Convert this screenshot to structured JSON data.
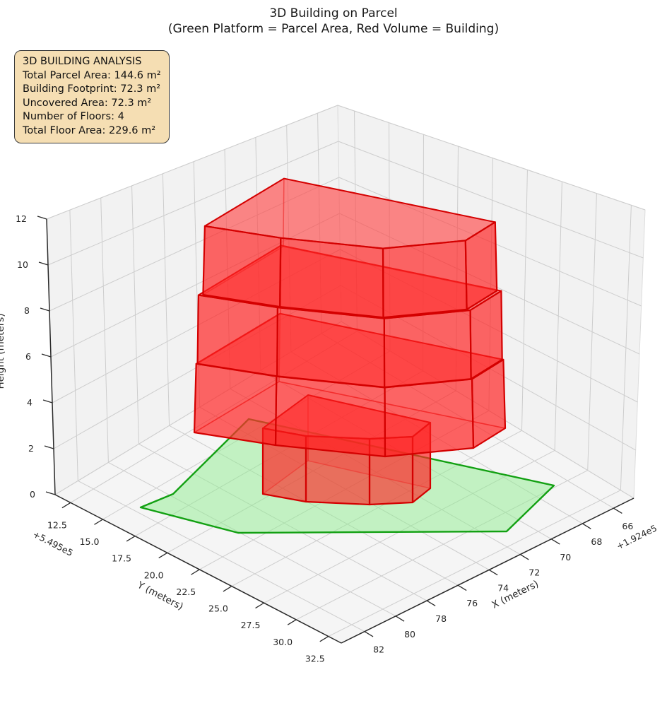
{
  "title": "3D Building on Parcel",
  "subtitle": "(Green Platform = Parcel Area, Red Volume = Building)",
  "info_box": {
    "heading": "3D BUILDING ANALYSIS",
    "lines": [
      "Total Parcel Area: 144.6 m²",
      "Building Footprint: 72.3 m²",
      "Uncovered Area: 72.3 m²",
      "Number of Floors: 4",
      "Total Floor Area: 229.6 m²"
    ]
  },
  "axes": {
    "x": {
      "label": "X (meters)",
      "offset_label": "+1.924e5",
      "ticks": [
        "82",
        "80",
        "78",
        "76",
        "74",
        "72",
        "70",
        "68",
        "66"
      ]
    },
    "y": {
      "label": "Y (meters)",
      "offset_label": "+5.495e5",
      "ticks": [
        "12.5",
        "15.0",
        "17.5",
        "20.0",
        "22.5",
        "25.0",
        "27.5",
        "30.0",
        "32.5"
      ]
    },
    "z": {
      "label": "Height (meters)",
      "ticks": [
        "0",
        "2",
        "4",
        "6",
        "8",
        "10",
        "12"
      ]
    }
  },
  "colors": {
    "parcel_fill": "#90ee90",
    "parcel_edge": "#12a012",
    "building_edge": "#d40000",
    "building_fill": "#ff1e1e",
    "info_box_bg": "#f5deb3",
    "pane": "#f2f2f2",
    "grid": "#cdcdcd"
  },
  "chart_data": {
    "type": "3d-building-parcel-plot",
    "title": "3D Building on Parcel",
    "subtitle": "(Green Platform = Parcel Area, Red Volume = Building)",
    "x_axis": {
      "label": "X (meters)",
      "tick_values": [
        66,
        68,
        70,
        72,
        74,
        76,
        78,
        80,
        82
      ],
      "offset": "+1.924e5",
      "range_est": [
        64.7,
        83.5
      ]
    },
    "y_axis": {
      "label": "Y (meters)",
      "tick_values": [
        12.5,
        15.0,
        17.5,
        20.0,
        22.5,
        25.0,
        27.5,
        30.0,
        32.5
      ],
      "offset": "+5.495e5",
      "range_est": [
        11.3,
        33.5
      ]
    },
    "z_axis": {
      "label": "Height (meters)",
      "tick_values": [
        0,
        2,
        4,
        6,
        8,
        10,
        12
      ],
      "range": [
        0,
        12
      ]
    },
    "parcel": {
      "shape": "polygon",
      "color": "green (translucent)",
      "total_area_m2": 144.6,
      "z_level": 0
    },
    "building": {
      "color": "red (translucent)",
      "footprint_m2": 72.3,
      "uncovered_area_m2": 72.3,
      "number_of_floors": 4,
      "total_floor_area_m2": 229.6,
      "floor_height_m": 3,
      "total_height_m": 12,
      "notes": "ground floor box is a smaller polygon sitting on the parcel; floors 2-4 form a larger overhanging polygonal mass with visible slab lips at z=6 and z=9"
    },
    "legend_position": "text box, upper-left",
    "grid": true
  }
}
